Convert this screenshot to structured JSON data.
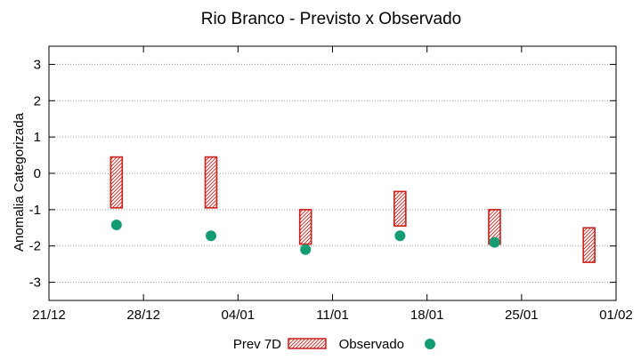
{
  "chart_data": {
    "type": "range-bar-scatter",
    "title": "Rio Branco - Previsto x Observado",
    "ylabel": "Anomalia Categorizada",
    "xlabel": "",
    "xlim": [
      "2022-12-21",
      "2023-02-01"
    ],
    "ylim": [
      -3.5,
      3.5
    ],
    "x_ticks": [
      {
        "date": "2022-12-21",
        "label": "21/12"
      },
      {
        "date": "2022-12-28",
        "label": "28/12"
      },
      {
        "date": "2023-01-04",
        "label": "04/01"
      },
      {
        "date": "2023-01-11",
        "label": "11/01"
      },
      {
        "date": "2023-01-18",
        "label": "18/01"
      },
      {
        "date": "2023-01-25",
        "label": "25/01"
      },
      {
        "date": "2023-02-01",
        "label": "01/02"
      }
    ],
    "y_ticks": [
      3,
      2,
      1,
      0,
      -1,
      -2,
      -3
    ],
    "grid": true,
    "legend_position": "bottom",
    "legend": {
      "forecast_label": "Prev 7D",
      "observed_label": "Observado"
    },
    "series": {
      "forecast": [
        {
          "date": "2022-12-26",
          "low": -0.95,
          "high": 0.45
        },
        {
          "date": "2023-01-02",
          "low": -0.95,
          "high": 0.45
        },
        {
          "date": "2023-01-09",
          "low": -1.95,
          "high": -1.0
        },
        {
          "date": "2023-01-16",
          "low": -1.45,
          "high": -0.5
        },
        {
          "date": "2023-01-23",
          "low": -1.95,
          "high": -1.0
        },
        {
          "date": "2023-01-30",
          "low": -2.45,
          "high": -1.5
        }
      ],
      "observed": [
        {
          "date": "2022-12-26",
          "value": -1.42
        },
        {
          "date": "2023-01-02",
          "value": -1.72
        },
        {
          "date": "2023-01-09",
          "value": -2.1
        },
        {
          "date": "2023-01-16",
          "value": -1.72
        },
        {
          "date": "2023-01-23",
          "value": -1.9
        }
      ]
    },
    "colors": {
      "forecast": "#cc1f1a",
      "observed": "#149c74",
      "grid": "#9a9a9a"
    }
  }
}
